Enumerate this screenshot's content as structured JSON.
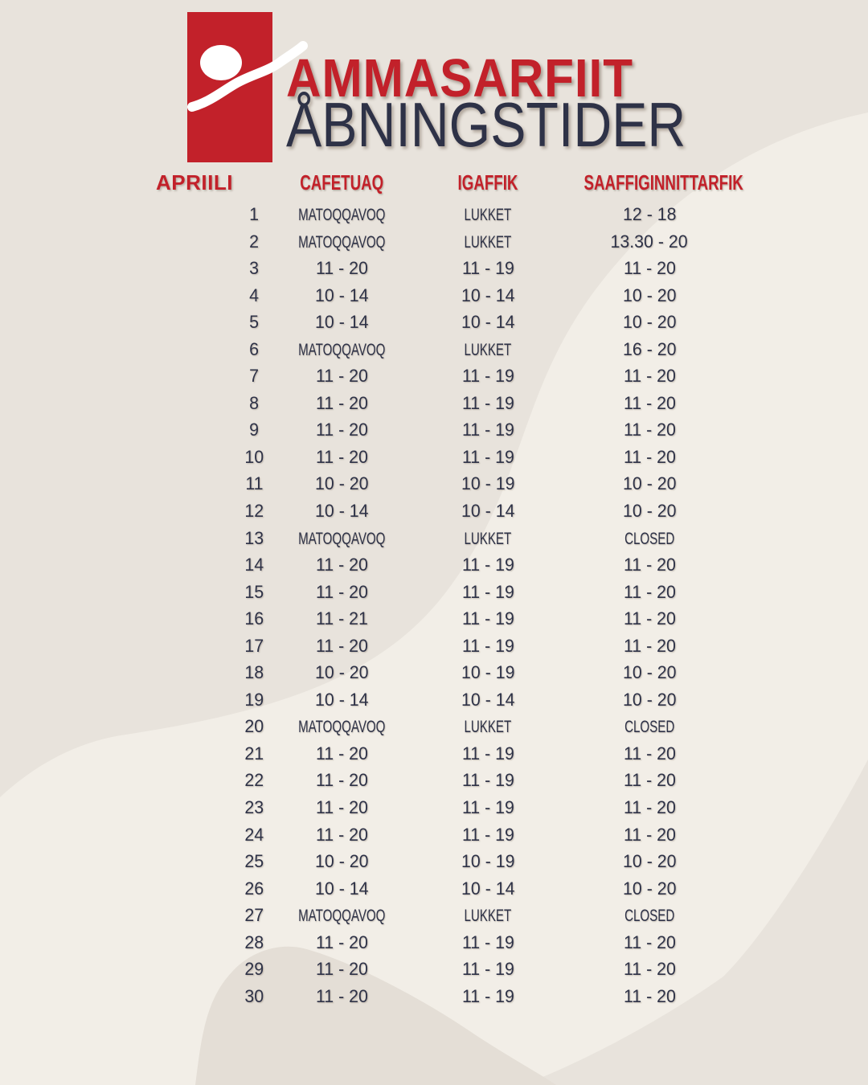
{
  "header": {
    "title_line1": "AMMASARFIIT",
    "title_line2": "ÅBNINGSTIDER",
    "logo_name": "person-swoosh-logo"
  },
  "table": {
    "month_label": "APRIILI",
    "columns": [
      "CAFETUAQ",
      "IGAFFIK",
      "SAAFFIGINNITTARFIK"
    ],
    "rows": [
      {
        "day": "1",
        "cols": [
          "MATOQQAVOQ",
          "LUKKET",
          "12 - 18"
        ]
      },
      {
        "day": "2",
        "cols": [
          "MATOQQAVOQ",
          "LUKKET",
          "13.30 - 20"
        ]
      },
      {
        "day": "3",
        "cols": [
          "11 - 20",
          "11 - 19",
          "11 - 20"
        ]
      },
      {
        "day": "4",
        "cols": [
          "10 - 14",
          "10 - 14",
          "10 - 20"
        ]
      },
      {
        "day": "5",
        "cols": [
          "10 - 14",
          "10 - 14",
          "10 - 20"
        ]
      },
      {
        "day": "6",
        "cols": [
          "MATOQQAVOQ",
          "LUKKET",
          "16 - 20"
        ]
      },
      {
        "day": "7",
        "cols": [
          "11 - 20",
          "11 - 19",
          "11 - 20"
        ]
      },
      {
        "day": "8",
        "cols": [
          "11 - 20",
          "11 - 19",
          "11 - 20"
        ]
      },
      {
        "day": "9",
        "cols": [
          "11 - 20",
          "11 - 19",
          "11 - 20"
        ]
      },
      {
        "day": "10",
        "cols": [
          "11 - 20",
          "11 - 19",
          "11 - 20"
        ]
      },
      {
        "day": "11",
        "cols": [
          "10 - 20",
          "10 - 19",
          "10 - 20"
        ]
      },
      {
        "day": "12",
        "cols": [
          "10 - 14",
          "10 - 14",
          "10 - 20"
        ]
      },
      {
        "day": "13",
        "cols": [
          "MATOQQAVOQ",
          "LUKKET",
          "CLOSED"
        ]
      },
      {
        "day": "14",
        "cols": [
          "11 - 20",
          "11 - 19",
          "11 - 20"
        ]
      },
      {
        "day": "15",
        "cols": [
          "11 - 20",
          "11 - 19",
          "11 - 20"
        ]
      },
      {
        "day": "16",
        "cols": [
          "11 - 21",
          "11 - 19",
          "11 - 20"
        ]
      },
      {
        "day": "17",
        "cols": [
          "11 - 20",
          "11 - 19",
          "11 - 20"
        ]
      },
      {
        "day": "18",
        "cols": [
          "10 - 20",
          "10 - 19",
          "10 - 20"
        ]
      },
      {
        "day": "19",
        "cols": [
          "10 - 14",
          "10 - 14",
          "10 - 20"
        ]
      },
      {
        "day": "20",
        "cols": [
          "MATOQQAVOQ",
          "LUKKET",
          "CLOSED"
        ]
      },
      {
        "day": "21",
        "cols": [
          "11 - 20",
          "11 - 19",
          "11 - 20"
        ]
      },
      {
        "day": "22",
        "cols": [
          "11 - 20",
          "11 - 19",
          "11 - 20"
        ]
      },
      {
        "day": "23",
        "cols": [
          "11 - 20",
          "11 - 19",
          "11 - 20"
        ]
      },
      {
        "day": "24",
        "cols": [
          "11 - 20",
          "11 - 19",
          "11 - 20"
        ]
      },
      {
        "day": "25",
        "cols": [
          "10 - 20",
          "10 - 19",
          "10 - 20"
        ]
      },
      {
        "day": "26",
        "cols": [
          "10 - 14",
          "10 - 14",
          "10 - 20"
        ]
      },
      {
        "day": "27",
        "cols": [
          "MATOQQAVOQ",
          "LUKKET",
          "CLOSED"
        ]
      },
      {
        "day": "28",
        "cols": [
          "11 - 20",
          "11 - 19",
          "11 - 20"
        ]
      },
      {
        "day": "29",
        "cols": [
          "11 - 20",
          "11 - 19",
          "11 - 20"
        ]
      },
      {
        "day": "30",
        "cols": [
          "11 - 20",
          "11 - 19",
          "11 - 20"
        ]
      }
    ]
  },
  "colors": {
    "red": "#c2212a",
    "navy": "#2e3247",
    "bg_base": "#e8e3dc",
    "bg_light": "#f2eee7",
    "bg_dark": "#e4ded6",
    "logo_white": "#ffffff"
  }
}
